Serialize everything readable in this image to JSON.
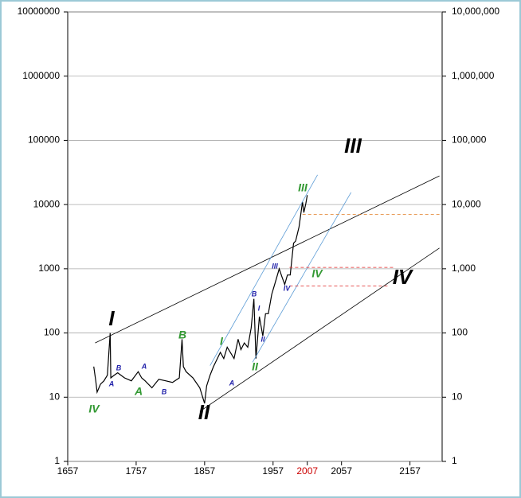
{
  "chart_data": {
    "type": "line",
    "log_scale": true,
    "grid": true,
    "xlim": [
      1657,
      2204
    ],
    "xticks": [
      1657,
      1757,
      1857,
      1957,
      2007,
      2057,
      2157
    ],
    "xtick_colors": [
      "#000000",
      "#000000",
      "#000000",
      "#000000",
      "#cc0000",
      "#000000",
      "#000000"
    ],
    "ylim": [
      1,
      10000000
    ],
    "yticks": [
      1,
      10,
      100,
      1000,
      10000,
      100000,
      1000000,
      10000000
    ],
    "y2lim": [
      1,
      10000000
    ],
    "y2ticks": [
      {
        "value": 1,
        "label": "1"
      },
      {
        "value": 10,
        "label": "10"
      },
      {
        "value": 100,
        "label": "100"
      },
      {
        "value": 1000,
        "label": "1,000"
      },
      {
        "value": 10000,
        "label": "10,000"
      },
      {
        "value": 100000,
        "label": "100,000"
      },
      {
        "value": 1000000,
        "label": "1,000,000"
      },
      {
        "value": 10000000,
        "label": "10,000,000"
      }
    ],
    "series": [
      {
        "color": "#000000",
        "width": 1.2,
        "x": [
          1695,
          1698,
          1700,
          1705,
          1710,
          1715,
          1719,
          1720,
          1725,
          1730,
          1740,
          1750,
          1760,
          1765,
          1770,
          1780,
          1790,
          1800,
          1810,
          1820,
          1824,
          1826,
          1830,
          1840,
          1850,
          1857,
          1860,
          1865,
          1870,
          1880,
          1885,
          1890,
          1900,
          1906,
          1910,
          1915,
          1920,
          1925,
          1929,
          1932,
          1937,
          1942,
          1946,
          1950,
          1955,
          1960,
          1966,
          1970,
          1974,
          1978,
          1982,
          1987,
          1990,
          1995,
          2000,
          2002,
          2005,
          2007
        ],
        "values": [
          30,
          18,
          12,
          16,
          18,
          22,
          100,
          20,
          22,
          24,
          20,
          18,
          25,
          20,
          18,
          14,
          19,
          18,
          17,
          20,
          80,
          30,
          25,
          20,
          14,
          8,
          15,
          22,
          30,
          50,
          40,
          60,
          40,
          80,
          55,
          70,
          60,
          120,
          340,
          40,
          180,
          90,
          200,
          200,
          400,
          600,
          1000,
          750,
          570,
          800,
          800,
          2500,
          2700,
          4500,
          11000,
          7500,
          10500,
          14000
        ]
      },
      {
        "color": "#000000",
        "width": 0.8,
        "x": [
          1697,
          2200
        ],
        "values": [
          70,
          28000
        ]
      },
      {
        "color": "#000000",
        "width": 0.8,
        "x": [
          1850,
          2200
        ],
        "values": [
          6,
          2100
        ]
      },
      {
        "color": "#5b9bd5",
        "width": 0.8,
        "x": [
          1865,
          2022
        ],
        "values": [
          31,
          29000
        ]
      },
      {
        "color": "#5b9bd5",
        "width": 0.8,
        "x": [
          1927,
          2071
        ],
        "values": [
          35,
          15500
        ]
      },
      {
        "color": "#e07b20",
        "width": 0.8,
        "dash": true,
        "x": [
          2000,
          2200
        ],
        "values": [
          7000,
          7000
        ]
      },
      {
        "color": "#e02020",
        "width": 0.8,
        "dash": true,
        "x": [
          1981,
          2135
        ],
        "values": [
          1050,
          1050
        ]
      },
      {
        "color": "#e02020",
        "width": 0.8,
        "dash": true,
        "x": [
          1981,
          2125
        ],
        "values": [
          540,
          540
        ]
      }
    ],
    "annotations": [
      {
        "text": "I",
        "color": "#000000"
      },
      {
        "text": "II",
        "color": "#000000"
      },
      {
        "text": "III",
        "color": "#000000"
      },
      {
        "text": "IV",
        "color": "#000000"
      },
      {
        "text": "IV",
        "color": "#339933"
      },
      {
        "text": "III",
        "color": "#339933"
      },
      {
        "text": "IV",
        "color": "#339933"
      },
      {
        "text": "II",
        "color": "#339933"
      },
      {
        "text": "I",
        "color": "#339933"
      },
      {
        "text": "A",
        "color": "#339933"
      },
      {
        "text": "B",
        "color": "#339933"
      },
      {
        "text": "A",
        "color": "#2222aa"
      },
      {
        "text": "B",
        "color": "#2222aa"
      },
      {
        "text": "A",
        "color": "#2222aa"
      },
      {
        "text": "B",
        "color": "#2222aa"
      },
      {
        "text": "A",
        "color": "#2222aa"
      },
      {
        "text": "B",
        "color": "#2222aa"
      },
      {
        "text": "I",
        "color": "#2222aa"
      },
      {
        "text": "II",
        "color": "#2222aa"
      },
      {
        "text": "III",
        "color": "#2222aa"
      },
      {
        "text": "IV",
        "color": "#2222aa"
      }
    ]
  }
}
